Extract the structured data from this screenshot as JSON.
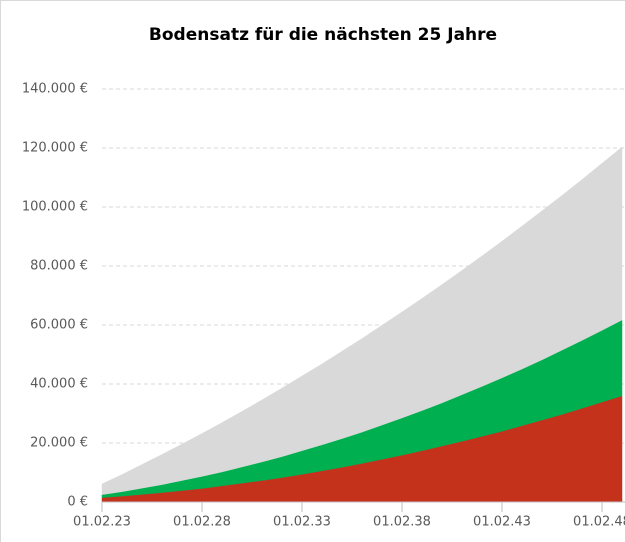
{
  "chart_data": {
    "type": "stacked_area",
    "title": "Bodensatz für die nächsten 25 Jahre",
    "categories": [
      "01.02.23",
      null,
      null,
      null,
      null,
      "01.02.28",
      null,
      null,
      null,
      null,
      "01.02.33",
      null,
      null,
      null,
      null,
      "01.02.38",
      null,
      null,
      null,
      null,
      "01.02.43",
      null,
      null,
      null,
      null,
      "01.02.48",
      null
    ],
    "series": [
      {
        "color": "#c4321c",
        "values": [
          1500,
          2000,
          2600,
          3200,
          3900,
          4600,
          5500,
          6400,
          7300,
          8300,
          9400,
          10600,
          11800,
          13100,
          14500,
          15900,
          17400,
          19000,
          20600,
          22300,
          24000,
          25900,
          27800,
          29700,
          31800,
          33900,
          36000
        ]
      },
      {
        "color": "#00b050",
        "values": [
          1000,
          1500,
          2100,
          2700,
          3400,
          4100,
          4700,
          5500,
          6300,
          7100,
          8000,
          8800,
          9700,
          10600,
          11600,
          12600,
          13600,
          14600,
          15800,
          16900,
          18100,
          19200,
          20400,
          21800,
          23000,
          24300,
          25700
        ]
      },
      {
        "color": "#d9d9d9",
        "values": [
          3600,
          5800,
          8000,
          10200,
          12300,
          14500,
          16700,
          18800,
          21000,
          23200,
          25300,
          27400,
          29600,
          31700,
          33800,
          35900,
          38000,
          40100,
          42100,
          44200,
          46300,
          48400,
          50500,
          52400,
          54500,
          56600,
          58600
        ]
      }
    ],
    "ylim": [
      0,
      140000
    ],
    "yticks": [
      {
        "value": 0,
        "label": "0 €"
      },
      {
        "value": 20000,
        "label": "20.000 €"
      },
      {
        "value": 40000,
        "label": "40.000 €"
      },
      {
        "value": 60000,
        "label": "60.000 €"
      },
      {
        "value": 80000,
        "label": "80.000 €"
      },
      {
        "value": 100000,
        "label": "100.000 €"
      },
      {
        "value": 120000,
        "label": "120.000 €"
      },
      {
        "value": 140000,
        "label": "140.000 €"
      }
    ],
    "grid": true
  }
}
